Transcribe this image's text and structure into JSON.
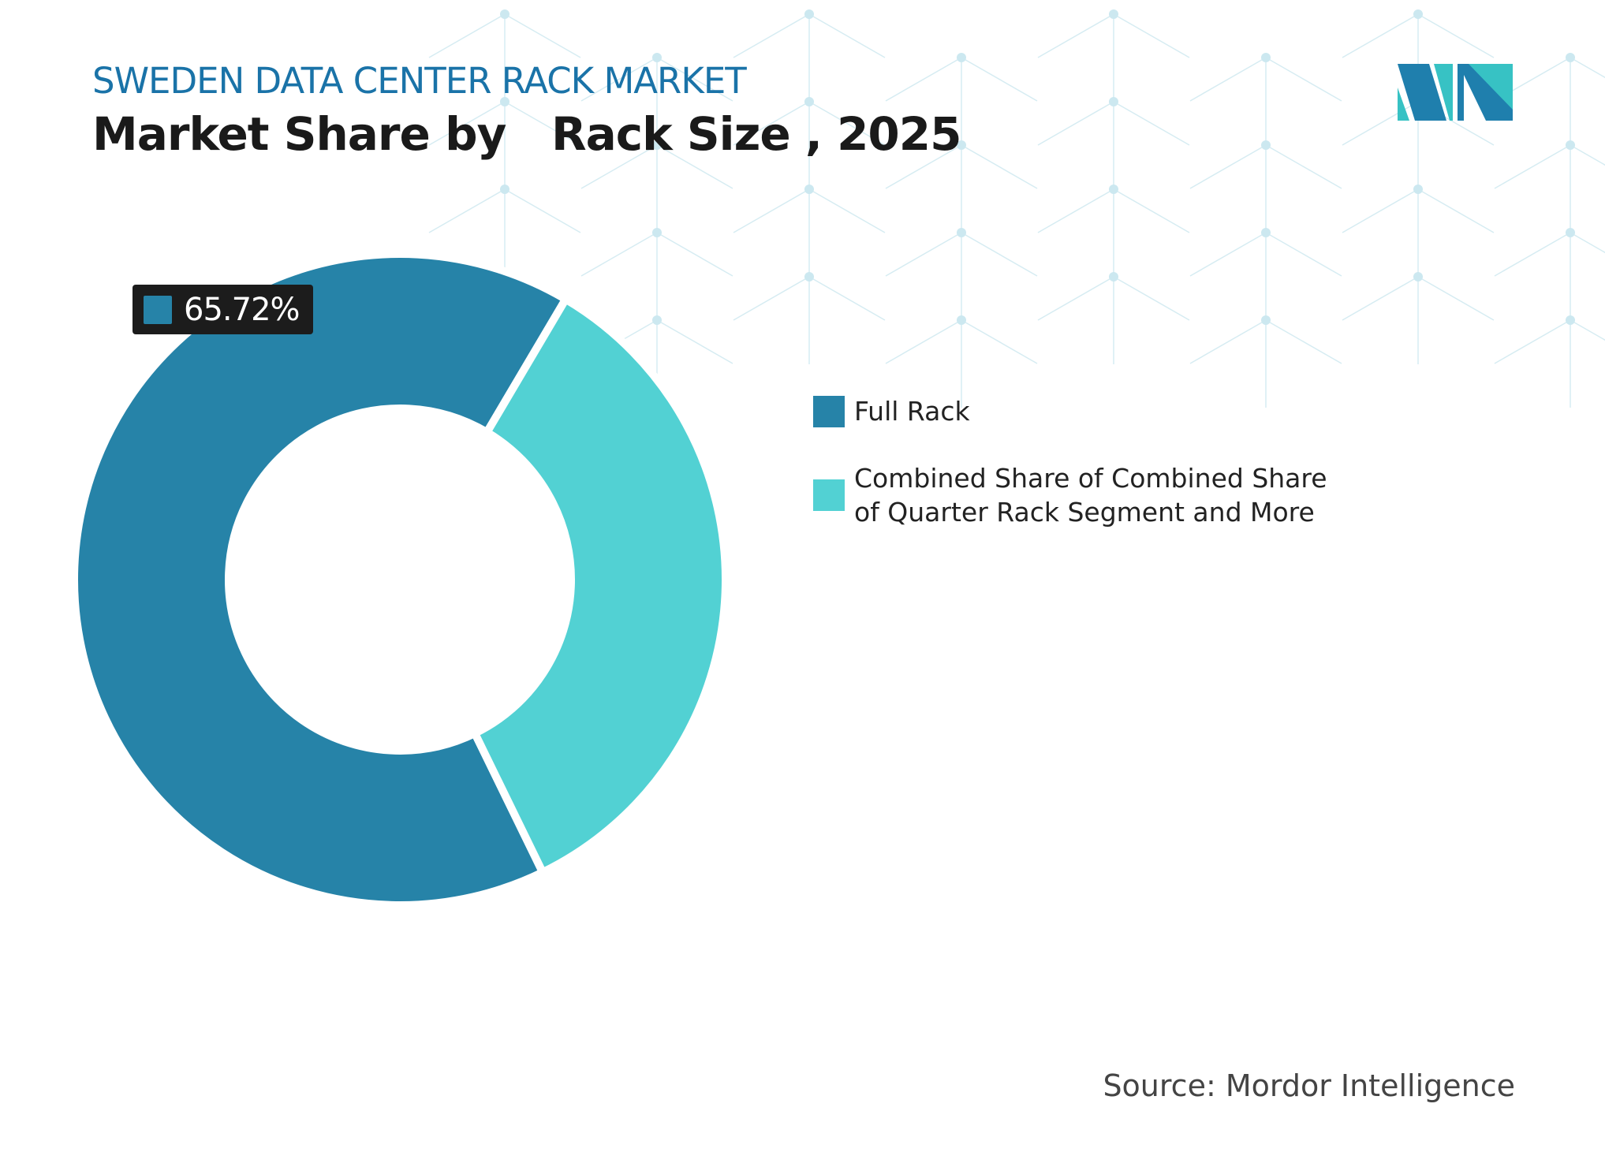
{
  "header": {
    "title": "SWEDEN DATA CENTER RACK MARKET",
    "subtitle": "Market Share by   Rack Size , 2025"
  },
  "chart_data": {
    "type": "pie",
    "variant": "donut",
    "categories": [
      "Full Rack",
      "Combined Share of Combined Share of Quarter Rack Segment and More"
    ],
    "values": [
      65.72,
      34.28
    ],
    "colors": [
      "#2683a8",
      "#52d1d3"
    ],
    "data_labels": [
      {
        "category": "Full Rack",
        "text": "65.72%"
      }
    ],
    "legend_position": "right"
  },
  "source": "Source: Mordor Intelligence",
  "logo": {
    "text": "Mordor Intelligence",
    "colors": [
      "#1f7fad",
      "#37c2c4"
    ]
  }
}
